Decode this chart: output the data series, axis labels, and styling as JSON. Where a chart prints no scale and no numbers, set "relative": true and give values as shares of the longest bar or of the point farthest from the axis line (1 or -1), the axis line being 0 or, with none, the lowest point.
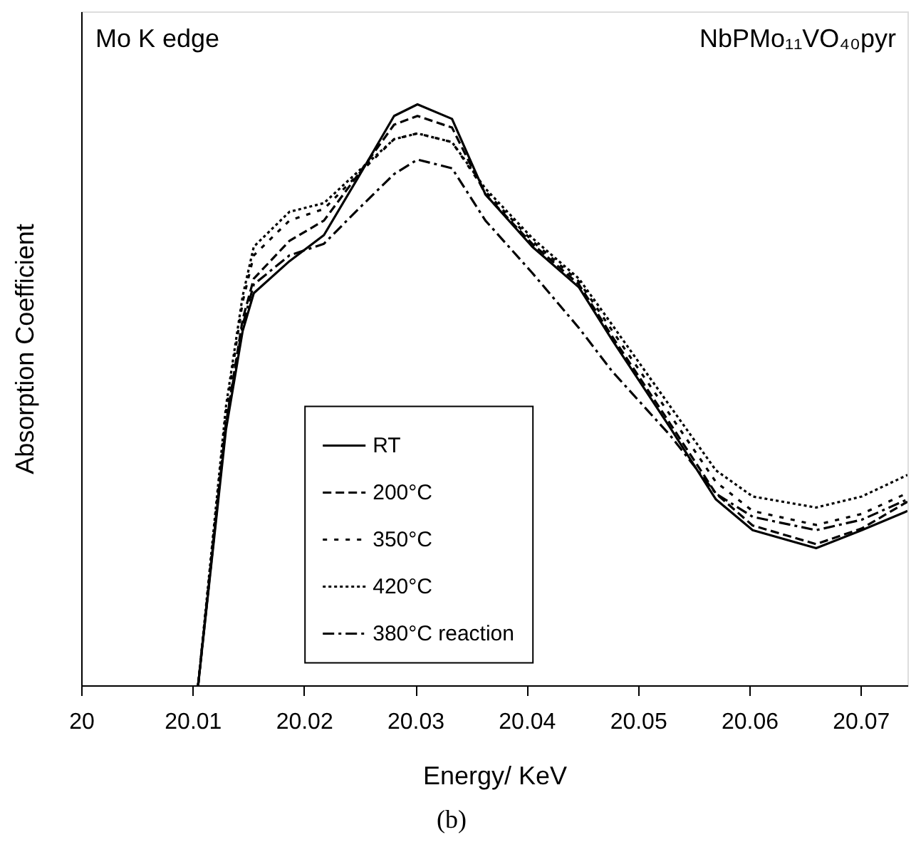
{
  "chart_data": {
    "type": "line",
    "relative": true,
    "xlabel": "Energy/ KeV",
    "ylabel": "Absorption Coefficient",
    "annotations": [
      "Mo K edge",
      "NbPMo₁₁VO₄₀pyr",
      "(b)"
    ],
    "xlim": [
      20,
      20.0742
    ],
    "xticks": [
      20,
      20.01,
      20.02,
      20.03,
      20.04,
      20.05,
      20.06,
      20.07
    ],
    "x": [
      20.0105,
      20.013,
      20.0145,
      20.0155,
      20.0187,
      20.0218,
      20.0249,
      20.0281,
      20.0302,
      20.0333,
      20.0363,
      20.0405,
      20.0447,
      20.0477,
      20.0529,
      20.057,
      20.0603,
      20.066,
      20.0701,
      20.0742
    ],
    "series": [
      {
        "name": "RT",
        "color": "#000000",
        "line_style": "solid",
        "values": [
          0,
          0.44,
          0.61,
          0.675,
          0.73,
          0.775,
          0.875,
          0.98,
          1,
          0.975,
          0.845,
          0.755,
          0.685,
          0.594,
          0.443,
          0.32,
          0.267,
          0.236,
          0.267,
          0.3
        ]
      },
      {
        "name": "200°C",
        "color": "#000000",
        "line_style": "dashed",
        "values": [
          0,
          0.45,
          0.63,
          0.7,
          0.765,
          0.8,
          0.88,
          0.965,
          0.98,
          0.96,
          0.845,
          0.76,
          0.69,
          0.6,
          0.45,
          0.33,
          0.275,
          0.243,
          0.27,
          0.316
        ]
      },
      {
        "name": "350°C",
        "color": "#000000",
        "line_style": "loosely dotted",
        "values": [
          0,
          0.47,
          0.66,
          0.74,
          0.8,
          0.82,
          0.88,
          0.94,
          0.95,
          0.935,
          0.85,
          0.765,
          0.695,
          0.61,
          0.465,
          0.35,
          0.3,
          0.276,
          0.295,
          0.331
        ]
      },
      {
        "name": "420°C",
        "color": "#000000",
        "line_style": "dotted",
        "values": [
          0,
          0.48,
          0.67,
          0.755,
          0.815,
          0.83,
          0.885,
          0.94,
          0.95,
          0.935,
          0.855,
          0.77,
          0.7,
          0.62,
          0.48,
          0.37,
          0.325,
          0.306,
          0.325,
          0.362
        ]
      },
      {
        "name": "380°C reaction",
        "color": "#000000",
        "line_style": "dashdot",
        "values": [
          0,
          0.45,
          0.62,
          0.69,
          0.74,
          0.76,
          0.82,
          0.88,
          0.905,
          0.89,
          0.8,
          0.71,
          0.615,
          0.54,
          0.43,
          0.33,
          0.29,
          0.267,
          0.285,
          0.32
        ]
      }
    ],
    "legend": "bottom left",
    "grid": false
  }
}
